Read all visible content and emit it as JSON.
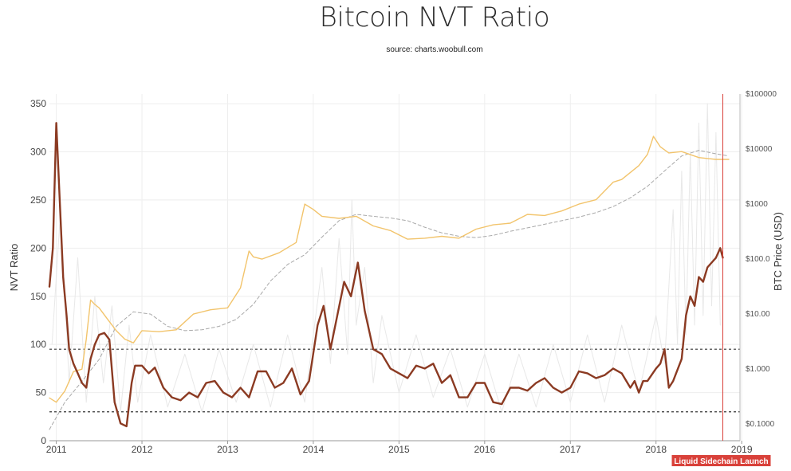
{
  "title": "Bitcoin NVT Ratio",
  "subtitle": "source: charts.woobull.com",
  "chart_data": {
    "type": "line",
    "title": "Bitcoin NVT Ratio",
    "subtitle": "source: charts.woobull.com",
    "xlabel": "",
    "ylabel": "NVT Ratio",
    "y2label": "BTC Price (USD)",
    "xlim": [
      2010.92,
      2018.98
    ],
    "ylim": [
      0,
      360
    ],
    "y2_scale": "log",
    "y2lim": [
      0.05,
      100000
    ],
    "x_ticks": [
      "2011",
      "2012",
      "2013",
      "2014",
      "2015",
      "2016",
      "2017",
      "2018",
      "2019"
    ],
    "y_ticks": [
      0,
      50,
      100,
      150,
      200,
      250,
      300,
      350
    ],
    "y2_ticks": [
      "$0.1000",
      "$1.000",
      "$10.00",
      "$100.0",
      "$1000",
      "$10000",
      "$100000"
    ],
    "grid": true,
    "thresholds": [
      95,
      30
    ],
    "annotation": {
      "x": 2018.78,
      "label": "Liquid Sidechain Launch",
      "color": "#d9413a"
    },
    "series": [
      {
        "key": "nvt",
        "axis": "left",
        "color": "#8b3a22",
        "x": [
          2010.92,
          2010.96,
          2011.0,
          2011.04,
          2011.08,
          2011.12,
          2011.15,
          2011.2,
          2011.25,
          2011.3,
          2011.35,
          2011.4,
          2011.45,
          2011.5,
          2011.56,
          2011.62,
          2011.68,
          2011.75,
          2011.82,
          2011.88,
          2011.92,
          2011.96,
          2012.0,
          2012.08,
          2012.15,
          2012.25,
          2012.35,
          2012.45,
          2012.55,
          2012.65,
          2012.75,
          2012.85,
          2012.95,
          2013.05,
          2013.15,
          2013.25,
          2013.35,
          2013.45,
          2013.55,
          2013.65,
          2013.75,
          2013.85,
          2013.95,
          2014.05,
          2014.12,
          2014.2,
          2014.28,
          2014.36,
          2014.44,
          2014.52,
          2014.6,
          2014.7,
          2014.8,
          2014.9,
          2015.0,
          2015.1,
          2015.2,
          2015.3,
          2015.4,
          2015.5,
          2015.6,
          2015.7,
          2015.8,
          2015.9,
          2016.0,
          2016.1,
          2016.2,
          2016.3,
          2016.4,
          2016.5,
          2016.6,
          2016.7,
          2016.8,
          2016.9,
          2017.0,
          2017.1,
          2017.2,
          2017.3,
          2017.4,
          2017.5,
          2017.6,
          2017.7,
          2017.75,
          2017.8,
          2017.85,
          2017.9,
          2018.0,
          2018.05,
          2018.1,
          2018.15,
          2018.2,
          2018.3,
          2018.35,
          2018.4,
          2018.45,
          2018.5,
          2018.55,
          2018.6,
          2018.65,
          2018.7,
          2018.75,
          2018.78
        ],
        "y": [
          160,
          200,
          330,
          250,
          170,
          130,
          95,
          80,
          70,
          60,
          55,
          85,
          100,
          110,
          112,
          105,
          40,
          18,
          15,
          60,
          78,
          78,
          78,
          70,
          76,
          55,
          45,
          42,
          50,
          45,
          60,
          62,
          50,
          45,
          55,
          45,
          72,
          72,
          55,
          60,
          75,
          48,
          62,
          120,
          140,
          95,
          130,
          165,
          150,
          185,
          135,
          95,
          90,
          75,
          70,
          65,
          78,
          75,
          80,
          60,
          68,
          45,
          45,
          60,
          60,
          40,
          38,
          55,
          55,
          52,
          60,
          65,
          55,
          50,
          55,
          72,
          70,
          65,
          68,
          75,
          70,
          55,
          62,
          50,
          62,
          62,
          75,
          80,
          95,
          55,
          62,
          85,
          130,
          150,
          140,
          170,
          165,
          180,
          185,
          190,
          200,
          190
        ]
      },
      {
        "key": "nvt_raw",
        "axis": "left",
        "color": "#e6e6e6",
        "x": [
          2010.95,
          2011.05,
          2011.15,
          2011.25,
          2011.35,
          2011.45,
          2011.55,
          2011.65,
          2011.75,
          2011.85,
          2011.95,
          2012.1,
          2012.3,
          2012.5,
          2012.7,
          2012.9,
          2013.1,
          2013.3,
          2013.5,
          2013.7,
          2013.9,
          2014.1,
          2014.2,
          2014.3,
          2014.4,
          2014.45,
          2014.5,
          2014.6,
          2014.7,
          2014.8,
          2015.0,
          2015.2,
          2015.4,
          2015.6,
          2015.8,
          2016.0,
          2016.2,
          2016.4,
          2016.6,
          2016.8,
          2017.0,
          2017.2,
          2017.4,
          2017.6,
          2017.8,
          2018.0,
          2018.1,
          2018.2,
          2018.25,
          2018.3,
          2018.35,
          2018.4,
          2018.45,
          2018.5,
          2018.55,
          2018.6,
          2018.65,
          2018.7,
          2018.75
        ],
        "y": [
          100,
          240,
          60,
          190,
          40,
          150,
          60,
          140,
          30,
          120,
          40,
          110,
          35,
          90,
          30,
          95,
          40,
          100,
          35,
          110,
          40,
          180,
          80,
          210,
          90,
          250,
          120,
          180,
          60,
          130,
          50,
          110,
          45,
          95,
          35,
          90,
          30,
          90,
          35,
          100,
          40,
          110,
          40,
          120,
          50,
          130,
          80,
          240,
          100,
          280,
          110,
          300,
          120,
          330,
          130,
          350,
          140,
          320,
          120
        ]
      },
      {
        "key": "price",
        "axis": "right",
        "color": "#f2c46c",
        "x": [
          2010.92,
          2011.0,
          2011.1,
          2011.2,
          2011.3,
          2011.35,
          2011.4,
          2011.45,
          2011.5,
          2011.6,
          2011.7,
          2011.8,
          2011.9,
          2012.0,
          2012.2,
          2012.4,
          2012.6,
          2012.8,
          2013.0,
          2013.15,
          2013.25,
          2013.3,
          2013.4,
          2013.6,
          2013.8,
          2013.9,
          2014.0,
          2014.1,
          2014.3,
          2014.5,
          2014.7,
          2014.9,
          2015.1,
          2015.3,
          2015.5,
          2015.7,
          2015.9,
          2016.1,
          2016.3,
          2016.5,
          2016.7,
          2016.9,
          2017.1,
          2017.3,
          2017.5,
          2017.6,
          2017.8,
          2017.9,
          2017.97,
          2018.05,
          2018.15,
          2018.3,
          2018.5,
          2018.7,
          2018.85
        ],
        "y": [
          0.3,
          0.25,
          0.4,
          0.9,
          1.0,
          3.5,
          18,
          15,
          13,
          8,
          5,
          3.5,
          3,
          5,
          4.8,
          5.2,
          10,
          12,
          13,
          30,
          140,
          110,
          100,
          130,
          200,
          1000,
          800,
          600,
          550,
          600,
          400,
          330,
          230,
          240,
          260,
          240,
          350,
          420,
          450,
          650,
          620,
          750,
          1000,
          1200,
          2500,
          2800,
          5000,
          8000,
          17000,
          11000,
          8500,
          9000,
          7000,
          6500,
          6500
        ]
      },
      {
        "key": "price_ma",
        "axis": "right",
        "color": "#a9a9a9",
        "x": [
          2010.92,
          2011.1,
          2011.3,
          2011.5,
          2011.7,
          2011.9,
          2012.1,
          2012.3,
          2012.5,
          2012.7,
          2012.9,
          2013.1,
          2013.3,
          2013.5,
          2013.7,
          2013.9,
          2014.1,
          2014.3,
          2014.5,
          2014.7,
          2014.9,
          2015.1,
          2015.3,
          2015.5,
          2015.7,
          2015.9,
          2016.1,
          2016.3,
          2016.5,
          2016.7,
          2016.9,
          2017.1,
          2017.3,
          2017.5,
          2017.7,
          2017.9,
          2018.1,
          2018.3,
          2018.5,
          2018.7,
          2018.85
        ],
        "y": [
          0.08,
          0.25,
          0.6,
          1.5,
          6,
          11,
          10,
          6,
          5,
          5.2,
          6,
          8,
          15,
          40,
          80,
          120,
          250,
          500,
          650,
          600,
          560,
          500,
          380,
          300,
          260,
          245,
          270,
          320,
          370,
          430,
          500,
          580,
          700,
          900,
          1300,
          2100,
          4000,
          7500,
          9500,
          8200,
          7500
        ]
      }
    ]
  }
}
